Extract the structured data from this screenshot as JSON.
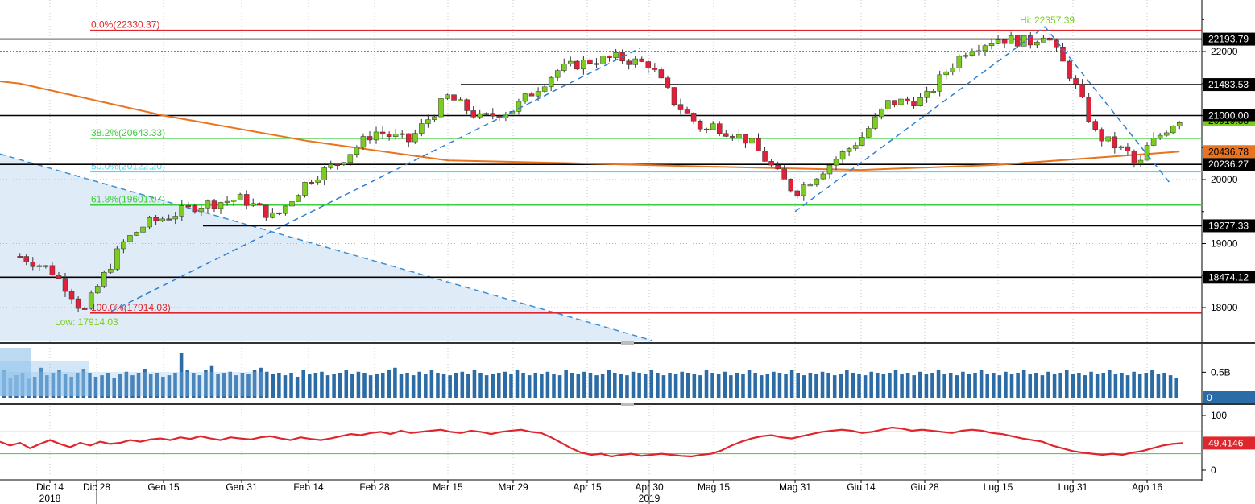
{
  "chart_data": [
    {
      "type": "candlestick",
      "panel": "price",
      "y_ticks": [
        18000,
        19000,
        20000,
        22000
      ],
      "ylim": [
        17500,
        22600
      ],
      "x_labels": [
        {
          "label": "Dic 14",
          "sub": "2018"
        },
        {
          "label": "Dic 28",
          "sub": ""
        },
        {
          "label": "Gen 15",
          "sub": ""
        },
        {
          "label": "Gen 31",
          "sub": ""
        },
        {
          "label": "Feb 14",
          "sub": ""
        },
        {
          "label": "Feb 28",
          "sub": ""
        },
        {
          "label": "Mar 15",
          "sub": ""
        },
        {
          "label": "Mar 29",
          "sub": ""
        },
        {
          "label": "Apr 15",
          "sub": ""
        },
        {
          "label": "Apr 30",
          "sub": "2019"
        },
        {
          "label": "Mag 15",
          "sub": ""
        },
        {
          "label": "Mag 31",
          "sub": ""
        },
        {
          "label": "Giu 14",
          "sub": ""
        },
        {
          "label": "Giu 28",
          "sub": ""
        },
        {
          "label": "Lug 15",
          "sub": ""
        },
        {
          "label": "Lug 31",
          "sub": ""
        },
        {
          "label": "Ago 16",
          "sub": ""
        }
      ],
      "close_trend": [
        {
          "date": "Dic 05",
          "close": 18800
        },
        {
          "date": "Dic 14",
          "close": 18600
        },
        {
          "date": "Dic 20",
          "close": 18250
        },
        {
          "date": "Dic 24",
          "close": 17914
        },
        {
          "date": "Dic 28",
          "close": 18300
        },
        {
          "date": "Gen 04",
          "close": 19000
        },
        {
          "date": "Gen 10",
          "close": 19300
        },
        {
          "date": "Gen 15",
          "close": 19400
        },
        {
          "date": "Gen 22",
          "close": 19600
        },
        {
          "date": "Gen 31",
          "close": 19700
        },
        {
          "date": "Feb 07",
          "close": 19400
        },
        {
          "date": "Feb 14",
          "close": 20000
        },
        {
          "date": "Feb 20",
          "close": 20250
        },
        {
          "date": "Feb 28",
          "close": 20750
        },
        {
          "date": "Mar 07",
          "close": 20600
        },
        {
          "date": "Mar 15",
          "close": 21300
        },
        {
          "date": "Mar 22",
          "close": 20950
        },
        {
          "date": "Mar 29",
          "close": 21100
        },
        {
          "date": "Apr 08",
          "close": 21700
        },
        {
          "date": "Apr 15",
          "close": 21850
        },
        {
          "date": "Apr 22",
          "close": 21900
        },
        {
          "date": "Apr 30",
          "close": 21800
        },
        {
          "date": "Mag 06",
          "close": 21200
        },
        {
          "date": "Mag 13",
          "close": 20750
        },
        {
          "date": "Mag 15",
          "close": 20850
        },
        {
          "date": "Mag 22",
          "close": 20600
        },
        {
          "date": "Mag 28",
          "close": 20050
        },
        {
          "date": "Mag 31",
          "close": 19800
        },
        {
          "date": "Giu 05",
          "close": 20100
        },
        {
          "date": "Giu 10",
          "close": 20400
        },
        {
          "date": "Giu 14",
          "close": 20650
        },
        {
          "date": "Giu 20",
          "close": 21200
        },
        {
          "date": "Giu 28",
          "close": 21250
        },
        {
          "date": "Lug 03",
          "close": 21700
        },
        {
          "date": "Lug 08",
          "close": 22050
        },
        {
          "date": "Lug 15",
          "close": 22200
        },
        {
          "date": "Lug 22",
          "close": 22150
        },
        {
          "date": "Lug 25",
          "close": 22300
        },
        {
          "date": "Lug 31",
          "close": 21550
        },
        {
          "date": "Ago 05",
          "close": 20700
        },
        {
          "date": "Ago 12",
          "close": 20400
        },
        {
          "date": "Ago 14",
          "close": 20150
        },
        {
          "date": "Ago 16",
          "close": 20500
        },
        {
          "date": "Ago 21",
          "close": 20850
        },
        {
          "date": "Ago 23",
          "close": 20950
        }
      ],
      "moving_average": [
        {
          "date": "Dic 05",
          "value": 21500
        },
        {
          "date": "Gen 15",
          "value": 21000
        },
        {
          "date": "Feb 14",
          "value": 20600
        },
        {
          "date": "Mar 15",
          "value": 20300
        },
        {
          "date": "Apr 15",
          "value": 20250
        },
        {
          "date": "Mag 15",
          "value": 20200
        },
        {
          "date": "Giu 14",
          "value": 20150
        },
        {
          "date": "Lug 15",
          "value": 20230
        },
        {
          "date": "Ago 16",
          "value": 20400
        },
        {
          "date": "Ago 23",
          "value": 20436.78
        }
      ],
      "horizontal_levels": [
        {
          "value": 22193.79,
          "label": "22193.79",
          "color": "#000000"
        },
        {
          "value": 22000,
          "label": "",
          "color": "#000000"
        },
        {
          "value": 21483.53,
          "label": "21483.53",
          "color": "#000000"
        },
        {
          "value": 21000.0,
          "label": "21000.00",
          "color": "#000000"
        },
        {
          "value": 20236.27,
          "label": "20236.27",
          "color": "#000000"
        },
        {
          "value": 19277.33,
          "label": "19277.33",
          "color": "#000000"
        },
        {
          "value": 18474.12,
          "label": "18474.12",
          "color": "#000000"
        }
      ],
      "fibonacci": [
        {
          "value": 22330.37,
          "label": "0.0%(22330.37)",
          "color": "#e0262d"
        },
        {
          "value": 20643.33,
          "label": "38.2%(20643.33)",
          "color": "#3ccc3c"
        },
        {
          "value": 20122.2,
          "label": "50.0%(20122.20)",
          "color": "#56d6f0"
        },
        {
          "value": 19601.07,
          "label": "61.8%(19601.07)",
          "color": "#3ccc3c"
        },
        {
          "value": 17914.03,
          "label": "100.0%(17914.03)",
          "color": "#e0262d"
        }
      ],
      "price_labels": {
        "ma_value": "20436.78",
        "last_partial": "20919.88"
      },
      "annotations": {
        "high": "Hi: 22357.39",
        "low": "Low: 17914.03"
      },
      "colors": {
        "up": "#7ccd1f",
        "down": "#e2203a",
        "ma": "#e9731f"
      }
    },
    {
      "type": "bar",
      "panel": "volume",
      "y_ticks": [
        {
          "value": 0.5,
          "label": "0.5B"
        }
      ],
      "last_label": "0",
      "bar_color": "#2b6ca6",
      "relative_volumes": [
        0.55,
        0.4,
        0.45,
        0.5,
        0.38,
        0.42,
        0.6,
        0.45,
        0.5,
        0.55,
        0.48,
        0.42,
        0.5,
        0.58,
        0.5,
        0.42,
        0.45,
        0.5,
        0.4,
        0.48,
        0.52,
        0.45,
        0.5,
        0.58,
        0.48,
        0.5,
        0.42,
        0.45,
        0.5,
        0.9,
        0.55,
        0.5,
        0.45,
        0.55,
        0.65,
        0.48,
        0.5,
        0.52,
        0.45,
        0.5,
        0.48,
        0.55,
        0.6,
        0.52,
        0.48,
        0.5,
        0.45,
        0.5,
        0.42,
        0.55,
        0.48,
        0.5,
        0.52,
        0.45,
        0.48,
        0.5,
        0.55,
        0.48,
        0.52,
        0.5,
        0.45,
        0.48,
        0.5,
        0.55,
        0.6,
        0.48,
        0.5,
        0.45,
        0.52,
        0.48,
        0.55,
        0.5,
        0.48,
        0.45,
        0.5,
        0.52,
        0.48,
        0.55,
        0.5,
        0.45,
        0.48,
        0.5,
        0.52,
        0.48,
        0.55,
        0.5,
        0.45,
        0.5,
        0.48,
        0.52,
        0.48,
        0.45,
        0.55,
        0.5,
        0.48,
        0.52,
        0.5,
        0.45,
        0.48,
        0.55,
        0.5,
        0.48,
        0.45,
        0.52,
        0.5,
        0.48,
        0.55,
        0.5,
        0.45,
        0.5,
        0.48,
        0.52,
        0.5,
        0.48,
        0.45,
        0.55,
        0.5,
        0.48,
        0.52,
        0.45,
        0.5,
        0.48,
        0.55,
        0.5,
        0.45,
        0.48,
        0.52,
        0.5,
        0.48,
        0.55,
        0.5,
        0.45,
        0.5,
        0.48,
        0.52,
        0.5,
        0.45,
        0.48,
        0.55,
        0.5,
        0.48,
        0.45,
        0.52,
        0.5,
        0.48,
        0.5,
        0.55,
        0.48,
        0.5,
        0.45,
        0.52,
        0.48,
        0.5,
        0.55,
        0.48,
        0.5,
        0.45,
        0.52,
        0.48,
        0.5,
        0.55,
        0.48,
        0.5,
        0.45,
        0.52,
        0.48,
        0.5,
        0.55,
        0.48,
        0.5,
        0.45,
        0.52,
        0.48,
        0.5,
        0.55,
        0.48,
        0.5,
        0.45,
        0.52,
        0.48,
        0.5,
        0.55,
        0.48,
        0.5,
        0.45,
        0.52,
        0.48,
        0.5,
        0.55,
        0.48,
        0.5,
        0.45,
        0.4
      ]
    },
    {
      "type": "line",
      "panel": "rsi",
      "y_ticks": [
        0,
        100
      ],
      "ylim": [
        0,
        100
      ],
      "overbought": 70,
      "oversold": 30,
      "last_value": "49.4146",
      "line_color": "#e0262d",
      "values": [
        52,
        45,
        50,
        40,
        48,
        55,
        48,
        42,
        50,
        45,
        52,
        48,
        50,
        55,
        52,
        56,
        58,
        55,
        60,
        57,
        62,
        58,
        55,
        60,
        58,
        56,
        60,
        62,
        58,
        55,
        60,
        57,
        55,
        58,
        62,
        66,
        64,
        68,
        70,
        66,
        72,
        68,
        70,
        72,
        74,
        70,
        68,
        72,
        70,
        66,
        70,
        72,
        74,
        70,
        68,
        60,
        50,
        40,
        32,
        28,
        30,
        25,
        28,
        30,
        26,
        28,
        30,
        28,
        26,
        25,
        28,
        30,
        36,
        45,
        52,
        58,
        62,
        64,
        60,
        58,
        62,
        66,
        70,
        72,
        74,
        72,
        68,
        70,
        74,
        78,
        76,
        72,
        74,
        72,
        70,
        68,
        72,
        74,
        72,
        68,
        66,
        62,
        58,
        55,
        52,
        45,
        40,
        35,
        32,
        30,
        28,
        30,
        28,
        32,
        35,
        40,
        45,
        48,
        49.4146
      ]
    }
  ]
}
